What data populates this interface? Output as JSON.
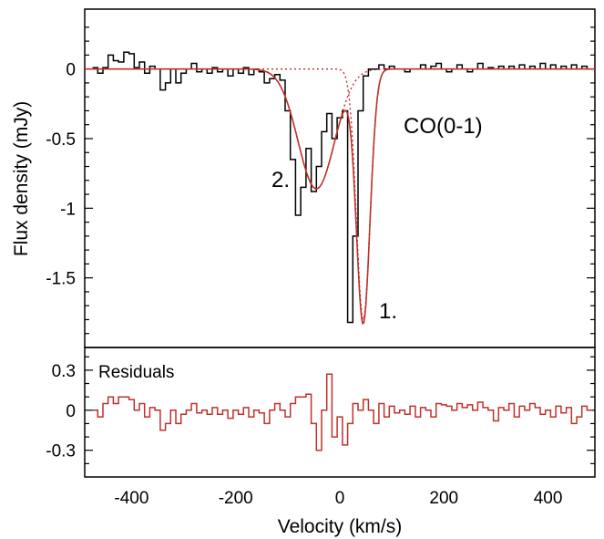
{
  "chart_data": [
    {
      "type": "line",
      "panel": "spectrum",
      "xlabel": "Velocity (km/s)",
      "ylabel": "Flux density (mJy)",
      "xlim": [
        -490,
        490
      ],
      "ylim": [
        -2.0,
        0.43
      ],
      "yticks": [
        0,
        -0.5,
        -1,
        -1.5
      ],
      "ytick_labels": [
        "0",
        "-0.5",
        "-1",
        "-1.5"
      ],
      "annotations": [
        {
          "text": "CO(0-1)",
          "x": 230,
          "y": -0.42
        },
        {
          "text": "1.",
          "x": 125,
          "y": -1.79
        },
        {
          "text": "2.",
          "x": -128,
          "y": -0.87
        }
      ],
      "series": [
        {
          "style": "step",
          "color": "#000000",
          "x": [
            -470,
            -460,
            -450,
            -440,
            -430,
            -420,
            -410,
            -400,
            -390,
            -380,
            -370,
            -360,
            -350,
            -340,
            -330,
            -320,
            -310,
            -300,
            -290,
            -280,
            -270,
            -260,
            -250,
            -240,
            -230,
            -220,
            -210,
            -200,
            -190,
            -180,
            -170,
            -160,
            -150,
            -140,
            -130,
            -120,
            -110,
            -100,
            -90,
            -80,
            -70,
            -60,
            -50,
            -40,
            -30,
            -20,
            -10,
            0,
            10,
            20,
            30,
            40,
            50,
            60,
            70,
            80,
            90,
            100,
            110,
            120,
            130,
            140,
            150,
            160,
            170,
            180,
            190,
            200,
            210,
            220,
            230,
            240,
            250,
            260,
            270,
            280,
            290,
            300,
            310,
            320,
            330,
            340,
            350,
            360,
            370,
            380,
            390,
            400,
            410,
            420,
            430,
            440,
            450,
            460,
            470,
            480
          ],
          "y": [
            0.01,
            -0.03,
            0.01,
            0.1,
            0.06,
            0.05,
            0.12,
            0.11,
            0.01,
            0.05,
            -0.03,
            0.02,
            0.0,
            -0.15,
            -0.1,
            0.0,
            -0.1,
            -0.03,
            0.0,
            0.04,
            -0.02,
            0.0,
            -0.03,
            0.01,
            -0.02,
            0.0,
            -0.05,
            0.0,
            -0.03,
            0.01,
            -0.04,
            0.0,
            -0.02,
            -0.1,
            -0.07,
            -0.04,
            -0.08,
            -0.3,
            -0.65,
            -1.05,
            -0.85,
            -0.57,
            -0.88,
            -0.7,
            -0.45,
            -0.32,
            -0.5,
            -0.35,
            -0.3,
            -1.82,
            -1.2,
            -0.3,
            -0.05,
            0.0,
            0.0,
            0.03,
            0.0,
            0.02,
            0.0,
            0.0,
            -0.02,
            0.0,
            0.0,
            0.03,
            0.0,
            0.02,
            0.04,
            0.0,
            -0.02,
            0.0,
            0.03,
            0.0,
            -0.02,
            0.0,
            0.04,
            0.0,
            0.01,
            0.0,
            0.02,
            0.0,
            0.02,
            0.0,
            0.03,
            0.0,
            0.02,
            0.0,
            0.04,
            0.0,
            0.03,
            0.0,
            0.02,
            0.0,
            0.03,
            0.0,
            0.02,
            0.0
          ]
        },
        {
          "style": "fit-total",
          "color": "#c0302a",
          "components": [
            {
              "label": "1.",
              "amplitude": -1.8,
              "center": 45,
              "sigma": 13
            },
            {
              "label": "2.",
              "amplitude": -0.86,
              "center": -45,
              "sigma": 35
            }
          ]
        }
      ]
    },
    {
      "type": "line",
      "panel": "residuals",
      "xlabel": "Velocity (km/s)",
      "ylabel": "",
      "xlim": [
        -490,
        490
      ],
      "ylim": [
        -0.5,
        0.47
      ],
      "yticks": [
        0.3,
        0,
        -0.3
      ],
      "ytick_labels": [
        "0.3",
        "0",
        "-0.3"
      ],
      "xticks": [
        -400,
        -200,
        0,
        200,
        400
      ],
      "xtick_labels": [
        "-400",
        "-200",
        "0",
        "200",
        "400"
      ],
      "annotations": [
        {
          "text": "Residuals"
        }
      ],
      "series": [
        {
          "style": "step",
          "color": "#c0302a",
          "x": [
            -470,
            -460,
            -450,
            -440,
            -430,
            -420,
            -410,
            -400,
            -390,
            -380,
            -370,
            -360,
            -350,
            -340,
            -330,
            -320,
            -310,
            -300,
            -290,
            -280,
            -270,
            -260,
            -250,
            -240,
            -230,
            -220,
            -210,
            -200,
            -190,
            -180,
            -170,
            -160,
            -150,
            -140,
            -130,
            -120,
            -110,
            -100,
            -90,
            -80,
            -70,
            -60,
            -50,
            -40,
            -30,
            -20,
            -10,
            0,
            10,
            20,
            30,
            40,
            50,
            60,
            70,
            80,
            90,
            100,
            110,
            120,
            130,
            140,
            150,
            160,
            170,
            180,
            190,
            200,
            210,
            220,
            230,
            240,
            250,
            260,
            270,
            280,
            290,
            300,
            310,
            320,
            330,
            340,
            350,
            360,
            370,
            380,
            390,
            400,
            410,
            420,
            430,
            440,
            450,
            460,
            470,
            480
          ],
          "y": [
            0.0,
            -0.05,
            0.05,
            0.1,
            0.05,
            0.1,
            0.1,
            0.08,
            0.0,
            0.05,
            -0.05,
            0.02,
            0.0,
            -0.15,
            -0.1,
            0.0,
            -0.1,
            -0.03,
            0.0,
            0.05,
            -0.02,
            0.0,
            -0.03,
            0.02,
            -0.03,
            0.0,
            -0.06,
            0.0,
            -0.03,
            0.02,
            -0.05,
            0.0,
            -0.02,
            -0.1,
            0.0,
            0.05,
            0.0,
            -0.05,
            0.05,
            0.1,
            0.1,
            0.12,
            -0.1,
            -0.3,
            0.0,
            0.27,
            -0.2,
            -0.05,
            -0.26,
            -0.1,
            0.05,
            0.0,
            0.08,
            0.0,
            -0.1,
            0.05,
            -0.05,
            0.03,
            -0.02,
            0.0,
            -0.03,
            0.03,
            -0.05,
            0.02,
            0.0,
            -0.05,
            0.05,
            0.04,
            0.03,
            0.0,
            0.05,
            0.02,
            0.04,
            0.0,
            0.06,
            0.02,
            0.0,
            -0.08,
            0.02,
            0.0,
            0.05,
            -0.05,
            0.03,
            0.0,
            0.05,
            0.02,
            -0.03,
            0.0,
            -0.05,
            0.03,
            -0.02,
            0.02,
            -0.1,
            -0.05,
            0.03,
            0.0
          ]
        }
      ]
    }
  ]
}
